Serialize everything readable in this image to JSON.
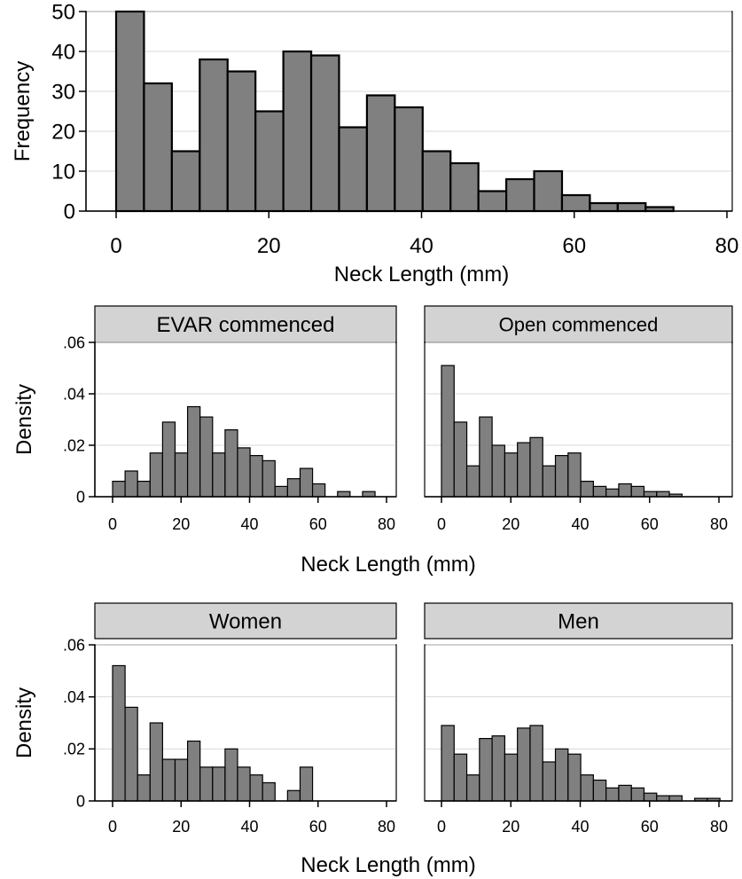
{
  "chart_data": [
    {
      "id": "top",
      "type": "bar",
      "subtype": "histogram",
      "xlabel": "Neck Length (mm)",
      "ylabel": "Frequency",
      "xlim": [
        0,
        80
      ],
      "ylim": [
        0,
        50
      ],
      "xticks": [
        "0",
        "20",
        "40",
        "60",
        "80"
      ],
      "yticks": [
        "0",
        "10",
        "20",
        "30",
        "40",
        "50"
      ],
      "bin_start": 0,
      "bin_width": 3.65,
      "values": [
        50,
        32,
        15,
        38,
        35,
        25,
        40,
        39,
        21,
        29,
        26,
        15,
        12,
        5,
        8,
        10,
        4,
        2,
        2,
        1
      ],
      "grid": true
    },
    {
      "id": "evar",
      "type": "bar",
      "subtype": "histogram",
      "title": "EVAR commenced",
      "ylabel": "Density",
      "xlim": [
        0,
        80
      ],
      "ylim": [
        0,
        0.06
      ],
      "xticks": [
        "0",
        "20",
        "40",
        "60",
        "80"
      ],
      "yticks": [
        "0",
        ".02",
        ".04",
        ".06"
      ],
      "bin_start": 0,
      "bin_width": 3.65,
      "values": [
        0.006,
        0.01,
        0.006,
        0.017,
        0.029,
        0.017,
        0.035,
        0.031,
        0.017,
        0.026,
        0.019,
        0.016,
        0.014,
        0.004,
        0.007,
        0.011,
        0.005,
        0,
        0.002,
        0,
        0.002
      ],
      "grid": true
    },
    {
      "id": "open",
      "type": "bar",
      "subtype": "histogram",
      "title": "Open commenced",
      "xlim": [
        0,
        80
      ],
      "ylim": [
        0,
        0.06
      ],
      "xticks": [
        "0",
        "20",
        "40",
        "60",
        "80"
      ],
      "bin_start": 0,
      "bin_width": 3.65,
      "values": [
        0.051,
        0.029,
        0.012,
        0.031,
        0.02,
        0.017,
        0.021,
        0.023,
        0.012,
        0.016,
        0.017,
        0.006,
        0.004,
        0.003,
        0.005,
        0.004,
        0.002,
        0.002,
        0.001
      ],
      "grid": true
    },
    {
      "id": "women",
      "type": "bar",
      "subtype": "histogram",
      "title": "Women",
      "ylabel": "Density",
      "xlim": [
        0,
        80
      ],
      "ylim": [
        0,
        0.06
      ],
      "xticks": [
        "0",
        "20",
        "40",
        "60",
        "80"
      ],
      "yticks": [
        "0",
        ".02",
        ".04",
        ".06"
      ],
      "bin_start": 0,
      "bin_width": 3.65,
      "values": [
        0.052,
        0.036,
        0.01,
        0.03,
        0.016,
        0.016,
        0.023,
        0.013,
        0.013,
        0.02,
        0.013,
        0.01,
        0.007,
        0,
        0.004,
        0.013
      ],
      "grid": true
    },
    {
      "id": "men",
      "type": "bar",
      "subtype": "histogram",
      "title": "Men",
      "xlim": [
        0,
        80
      ],
      "ylim": [
        0,
        0.06
      ],
      "xticks": [
        "0",
        "20",
        "40",
        "60",
        "80"
      ],
      "bin_start": 0,
      "bin_width": 3.65,
      "values": [
        0.029,
        0.018,
        0.01,
        0.024,
        0.025,
        0.018,
        0.028,
        0.029,
        0.015,
        0.02,
        0.018,
        0.01,
        0.008,
        0.005,
        0.006,
        0.005,
        0.003,
        0.002,
        0.002,
        0,
        0.001,
        0.001
      ],
      "grid": true
    }
  ],
  "shared_xlabel": "Neck Length (mm)",
  "colors": {
    "bar_fill": "#808080",
    "bar_stroke": "#000000",
    "strip_fill": "#d3d3d3",
    "grid": "#d9d9d9"
  }
}
